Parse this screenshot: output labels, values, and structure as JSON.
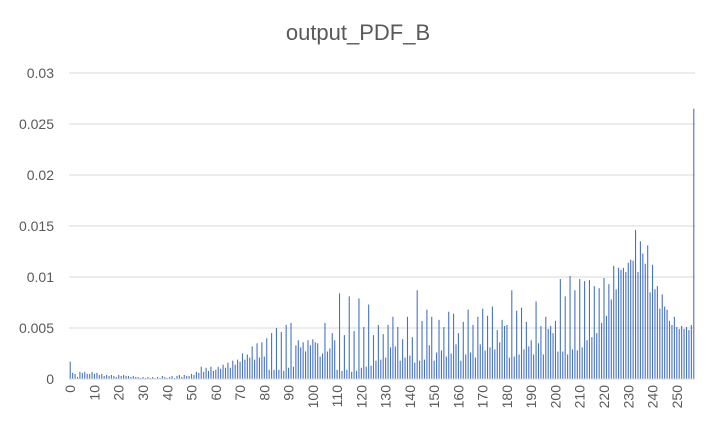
{
  "chart_data": {
    "type": "bar",
    "title": "output_PDF_B",
    "xlabel": "",
    "ylabel": "",
    "ylim": [
      0,
      0.03
    ],
    "y_ticks": [
      "0",
      "0.005",
      "0.01",
      "0.015",
      "0.02",
      "0.025",
      "0.03"
    ],
    "x_tick_labels": [
      "0",
      "10",
      "20",
      "30",
      "40",
      "50",
      "60",
      "70",
      "80",
      "90",
      "100",
      "110",
      "120",
      "130",
      "140",
      "150",
      "160",
      "170",
      "180",
      "190",
      "200",
      "210",
      "220",
      "230",
      "240",
      "250"
    ],
    "grid": true,
    "legend": "none",
    "bar_color": "#4472c4",
    "categories_start": 0,
    "categories_end": 255,
    "values": [
      0.0017,
      0.0006,
      0.0005,
      0.0002,
      0.0007,
      0.0006,
      0.0007,
      0.0005,
      0.0005,
      0.0007,
      0.0005,
      0.0006,
      0.0004,
      0.0005,
      0.0003,
      0.0004,
      0.0003,
      0.0004,
      0.0003,
      0.0002,
      0.0004,
      0.0003,
      0.0004,
      0.0003,
      0.0003,
      0.0002,
      0.0003,
      0.0002,
      0.0002,
      0.0001,
      0.0002,
      0.0001,
      0.0002,
      0.0001,
      0.0002,
      0.0001,
      0.0002,
      0.0001,
      0.0003,
      0.0002,
      0.0001,
      0.0002,
      0.0003,
      0.0001,
      0.0003,
      0.0004,
      0.0002,
      0.0004,
      0.0003,
      0.0003,
      0.0005,
      0.0004,
      0.0007,
      0.0006,
      0.0012,
      0.0007,
      0.0011,
      0.0008,
      0.0012,
      0.0008,
      0.0009,
      0.0012,
      0.001,
      0.0014,
      0.0011,
      0.0016,
      0.0011,
      0.0018,
      0.0014,
      0.0019,
      0.0017,
      0.0025,
      0.0019,
      0.0024,
      0.0021,
      0.0032,
      0.0019,
      0.0035,
      0.0021,
      0.0036,
      0.0022,
      0.004,
      0.0009,
      0.0045,
      0.0009,
      0.005,
      0.0009,
      0.0046,
      0.0008,
      0.0053,
      0.0011,
      0.0055,
      0.0012,
      0.0033,
      0.0038,
      0.0031,
      0.0036,
      0.0027,
      0.0038,
      0.0033,
      0.0039,
      0.0036,
      0.0035,
      0.0022,
      0.0025,
      0.0055,
      0.0027,
      0.003,
      0.0045,
      0.0038,
      0.0009,
      0.0084,
      0.0008,
      0.0043,
      0.0009,
      0.0081,
      0.0007,
      0.0047,
      0.0008,
      0.0079,
      0.0011,
      0.0051,
      0.0012,
      0.0073,
      0.0013,
      0.0043,
      0.0018,
      0.0053,
      0.0019,
      0.0044,
      0.0021,
      0.0053,
      0.0031,
      0.0061,
      0.0032,
      0.0051,
      0.0018,
      0.0039,
      0.0021,
      0.0061,
      0.0023,
      0.0041,
      0.0016,
      0.0087,
      0.0018,
      0.0057,
      0.0019,
      0.0068,
      0.0033,
      0.0061,
      0.0018,
      0.0026,
      0.0058,
      0.0028,
      0.0051,
      0.0022,
      0.0066,
      0.0025,
      0.0064,
      0.0034,
      0.0045,
      0.0018,
      0.0056,
      0.0024,
      0.0068,
      0.0026,
      0.0053,
      0.0021,
      0.0061,
      0.0034,
      0.0069,
      0.0028,
      0.0062,
      0.0031,
      0.0071,
      0.0029,
      0.0048,
      0.0036,
      0.0058,
      0.0052,
      0.0053,
      0.0021,
      0.0087,
      0.0022,
      0.0067,
      0.0024,
      0.007,
      0.0029,
      0.0056,
      0.0032,
      0.0038,
      0.0024,
      0.0076,
      0.0035,
      0.0052,
      0.0024,
      0.0061,
      0.0049,
      0.0052,
      0.0045,
      0.0057,
      0.0027,
      0.0098,
      0.0027,
      0.0081,
      0.0024,
      0.0101,
      0.0029,
      0.0087,
      0.0028,
      0.0098,
      0.0031,
      0.0096,
      0.0038,
      0.0097,
      0.0041,
      0.0091,
      0.0045,
      0.0089,
      0.0055,
      0.0099,
      0.0062,
      0.0093,
      0.0078,
      0.0111,
      0.0088,
      0.0109,
      0.0107,
      0.0109,
      0.0105,
      0.0114,
      0.0117,
      0.0116,
      0.0146,
      0.0105,
      0.0135,
      0.0123,
      0.0113,
      0.0131,
      0.0085,
      0.0112,
      0.0088,
      0.0091,
      0.0069,
      0.0083,
      0.0071,
      0.0068,
      0.0057,
      0.0053,
      0.0061,
      0.0051,
      0.0049,
      0.0052,
      0.0049,
      0.0051,
      0.0048,
      0.0053,
      0.0265
    ]
  }
}
